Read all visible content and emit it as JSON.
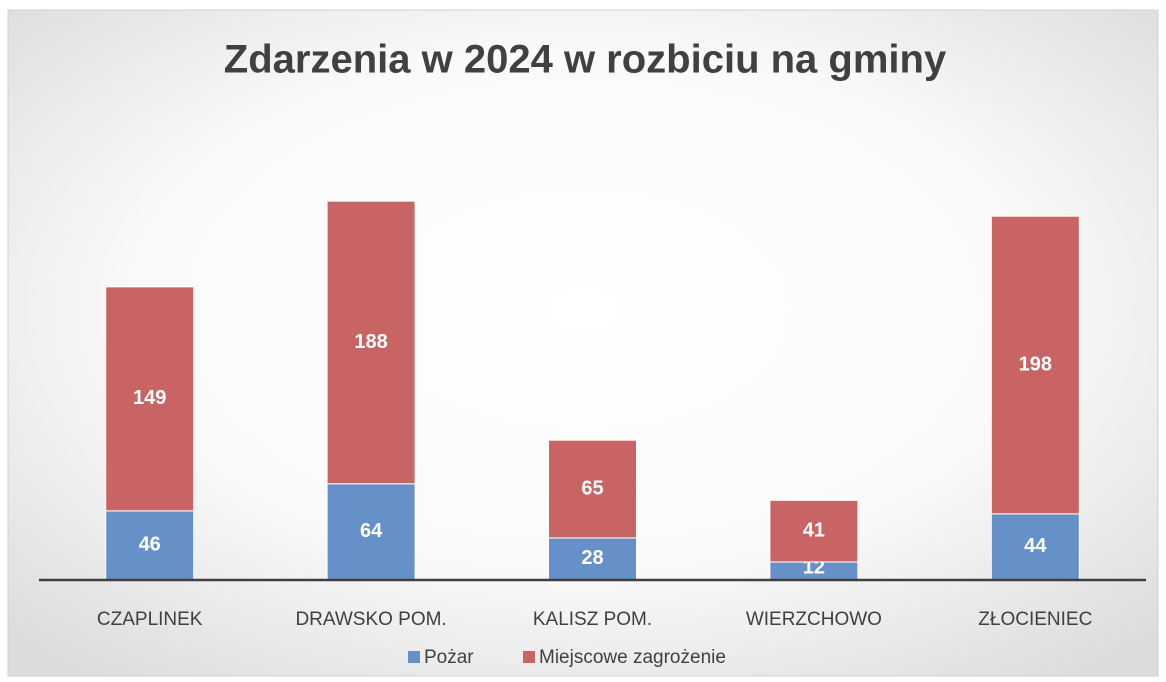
{
  "chart_data": {
    "type": "stacked_bar",
    "title": "Zdarzenia w 2024 w rozbiciu na gminy",
    "categories": [
      "CZAPLINEK",
      "DRAWSKO POM.",
      "KALISZ POM.",
      "WIERZCHOWO",
      "ZŁOCIENIEC"
    ],
    "series": [
      {
        "name": "Pożar",
        "color": "#6690c8",
        "values": [
          46,
          64,
          28,
          12,
          44
        ]
      },
      {
        "name": "Miejscowe zagrożenie",
        "color": "#c96464",
        "values": [
          149,
          188,
          65,
          41,
          198
        ]
      }
    ],
    "ylim": [
      0,
      300
    ],
    "legend": "bottom"
  }
}
